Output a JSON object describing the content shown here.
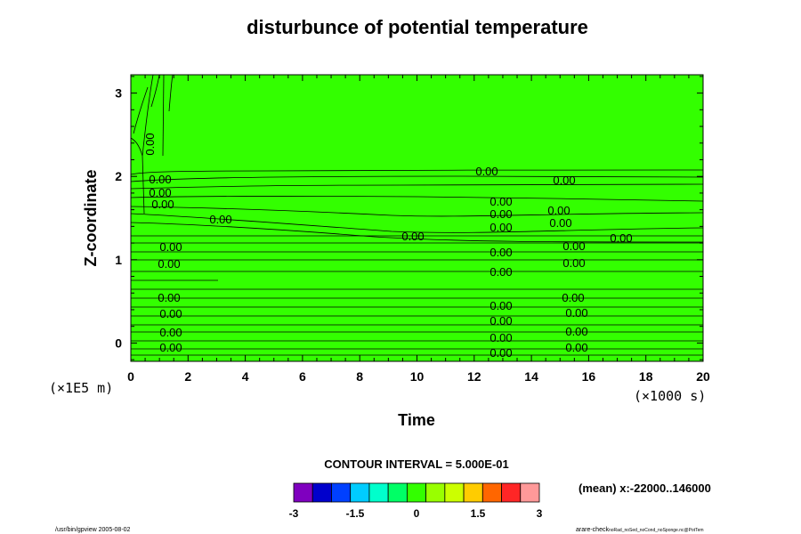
{
  "chart_data": {
    "type": "contour",
    "title": "disturbunce of potential temperature",
    "xlabel": "Time",
    "ylabel": "Z-coordinate",
    "x_unit": "(×1000 s)",
    "y_unit": "(×1E5 m)",
    "xlim": [
      0,
      20
    ],
    "ylim": [
      -0.22,
      3.22
    ],
    "x_ticks": [
      "0",
      "2",
      "4",
      "6",
      "8",
      "10",
      "12",
      "14",
      "16",
      "18",
      "20"
    ],
    "y_ticks": [
      "0",
      "1",
      "2",
      "3"
    ],
    "fill_color": "#33ff00",
    "contour_label": "0.00",
    "contour_interval_text": "CONTOUR INTERVAL = 5.000E-01",
    "mean_text": "(mean) x:-22000..146000",
    "colorbar": {
      "tick_labels": [
        "-3",
        "-1.5",
        "0",
        "1.5",
        "3"
      ],
      "colors": [
        "#7f00bf",
        "#0000cc",
        "#0040ff",
        "#00ccff",
        "#00ffcc",
        "#00ff66",
        "#33ff00",
        "#99ff00",
        "#ccff00",
        "#ffcc00",
        "#ff6600",
        "#ff2626",
        "#ff9999"
      ]
    }
  },
  "footer": {
    "left": "/usr/bin/gpview 2005-08-02",
    "right_main": "arare-check",
    "right_sub": "noRad_noSed_noCond_noSponge.nc@PotTem"
  }
}
